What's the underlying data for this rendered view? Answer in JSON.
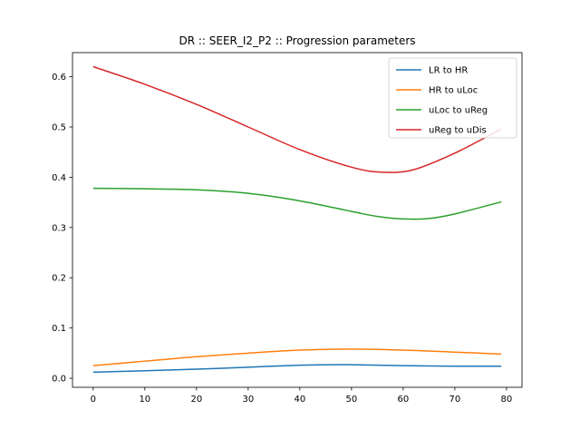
{
  "chart_data": {
    "type": "line",
    "title": "DR :: SEER_I2_P2 ::  Progression parameters",
    "xlabel": "",
    "ylabel": "",
    "xlim": [
      -4,
      83
    ],
    "ylim": [
      -0.018,
      0.648
    ],
    "xticks": [
      0,
      10,
      20,
      30,
      40,
      50,
      60,
      70,
      80
    ],
    "yticks": [
      0.0,
      0.1,
      0.2,
      0.3,
      0.4,
      0.5,
      0.6
    ],
    "ytick_labels": [
      "0.0",
      "0.1",
      "0.2",
      "0.3",
      "0.4",
      "0.5",
      "0.6"
    ],
    "legend_position": "top-right",
    "grid": false,
    "series": [
      {
        "name": "LR to HR",
        "color": "#1f77b4",
        "x": [
          0,
          10,
          20,
          30,
          40,
          47,
          50,
          60,
          70,
          79
        ],
        "y": [
          0.012,
          0.015,
          0.018,
          0.022,
          0.026,
          0.027,
          0.027,
          0.025,
          0.024,
          0.024
        ]
      },
      {
        "name": "HR to uLoc",
        "color": "#ff7f0e",
        "x": [
          0,
          10,
          20,
          30,
          40,
          50,
          60,
          70,
          79
        ],
        "y": [
          0.025,
          0.034,
          0.043,
          0.05,
          0.056,
          0.058,
          0.056,
          0.052,
          0.048
        ]
      },
      {
        "name": "uLoc to uReg",
        "color": "#2ca02c",
        "x": [
          0,
          10,
          20,
          30,
          40,
          50,
          55,
          60,
          65,
          70,
          79
        ],
        "y": [
          0.378,
          0.377,
          0.375,
          0.368,
          0.353,
          0.332,
          0.322,
          0.317,
          0.318,
          0.327,
          0.351
        ]
      },
      {
        "name": "uReg to uDis",
        "color": "#d62728",
        "x": [
          0,
          10,
          20,
          30,
          40,
          50,
          56,
          62,
          70,
          79
        ],
        "y": [
          0.62,
          0.585,
          0.545,
          0.5,
          0.455,
          0.42,
          0.41,
          0.415,
          0.448,
          0.496
        ]
      }
    ]
  }
}
